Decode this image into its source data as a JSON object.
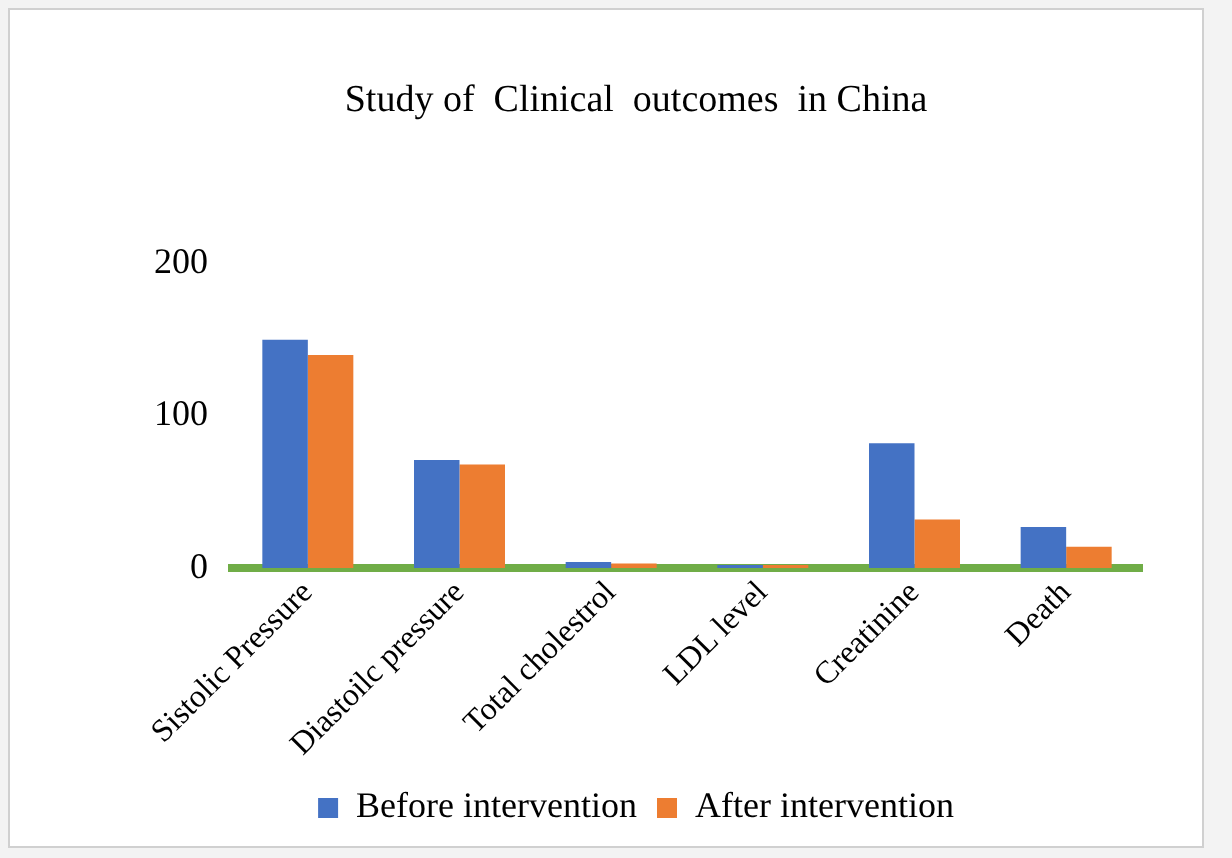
{
  "chart_data": {
    "type": "bar",
    "title": "Study of  Clinical  outcomes  in China",
    "categories": [
      "Sistolic Pressure",
      "Diastoilc pressure",
      "Total cholestrol",
      "LDL level",
      "Creatinine",
      "Death"
    ],
    "series": [
      {
        "name": "Before intervention",
        "color": "#4472c4",
        "values": [
          150,
          71,
          4,
          2,
          82,
          27
        ]
      },
      {
        "name": "After intervention",
        "color": "#ed7d31",
        "values": [
          140,
          68,
          3,
          2,
          32,
          14
        ]
      }
    ],
    "ylim": [
      0,
      200
    ],
    "yticks": [
      0,
      100,
      200
    ],
    "grid": false,
    "legend": "bottom"
  }
}
